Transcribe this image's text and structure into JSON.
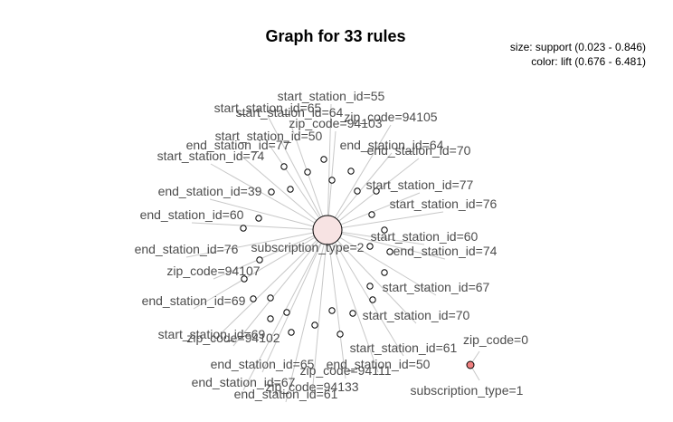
{
  "title": "Graph for 33 rules",
  "legend": {
    "size": "size: support (0.023 - 0.846)",
    "color": "color: lift (0.676 - 6.481)"
  },
  "colors": {
    "rule_fill_default": "#ffffff",
    "rule_fill_center": "#f7e3e3",
    "rule_fill_high_lift": "#f08080",
    "edge": "#c8c8c8",
    "label": "#4d4d4d"
  },
  "labels": [
    "start_station_id=55",
    "start_station_id=65",
    "start_station_id=64",
    "zip_code=94105",
    "zip_code=94103",
    "start_station_id=50",
    "end_station_id=77",
    "end_station_id=64",
    "end_station_id=70",
    "start_station_id=74",
    "start_station_id=77",
    "end_station_id=39",
    "start_station_id=76",
    "end_station_id=60",
    "start_station_id=60",
    "end_station_id=76",
    "subscription_type=2",
    "end_station_id=74",
    "zip_code=94107",
    "start_station_id=67",
    "end_station_id=69",
    "start_station_id=70",
    "start_station_id=69",
    "zip_code=94102",
    "start_station_id=61",
    "zip_code=0",
    "end_station_id=65",
    "end_station_id=50",
    "zip_code=94111",
    "end_station_id=67",
    "zip_code=94133",
    "end_station_id=61",
    "subscription_type=1"
  ]
}
